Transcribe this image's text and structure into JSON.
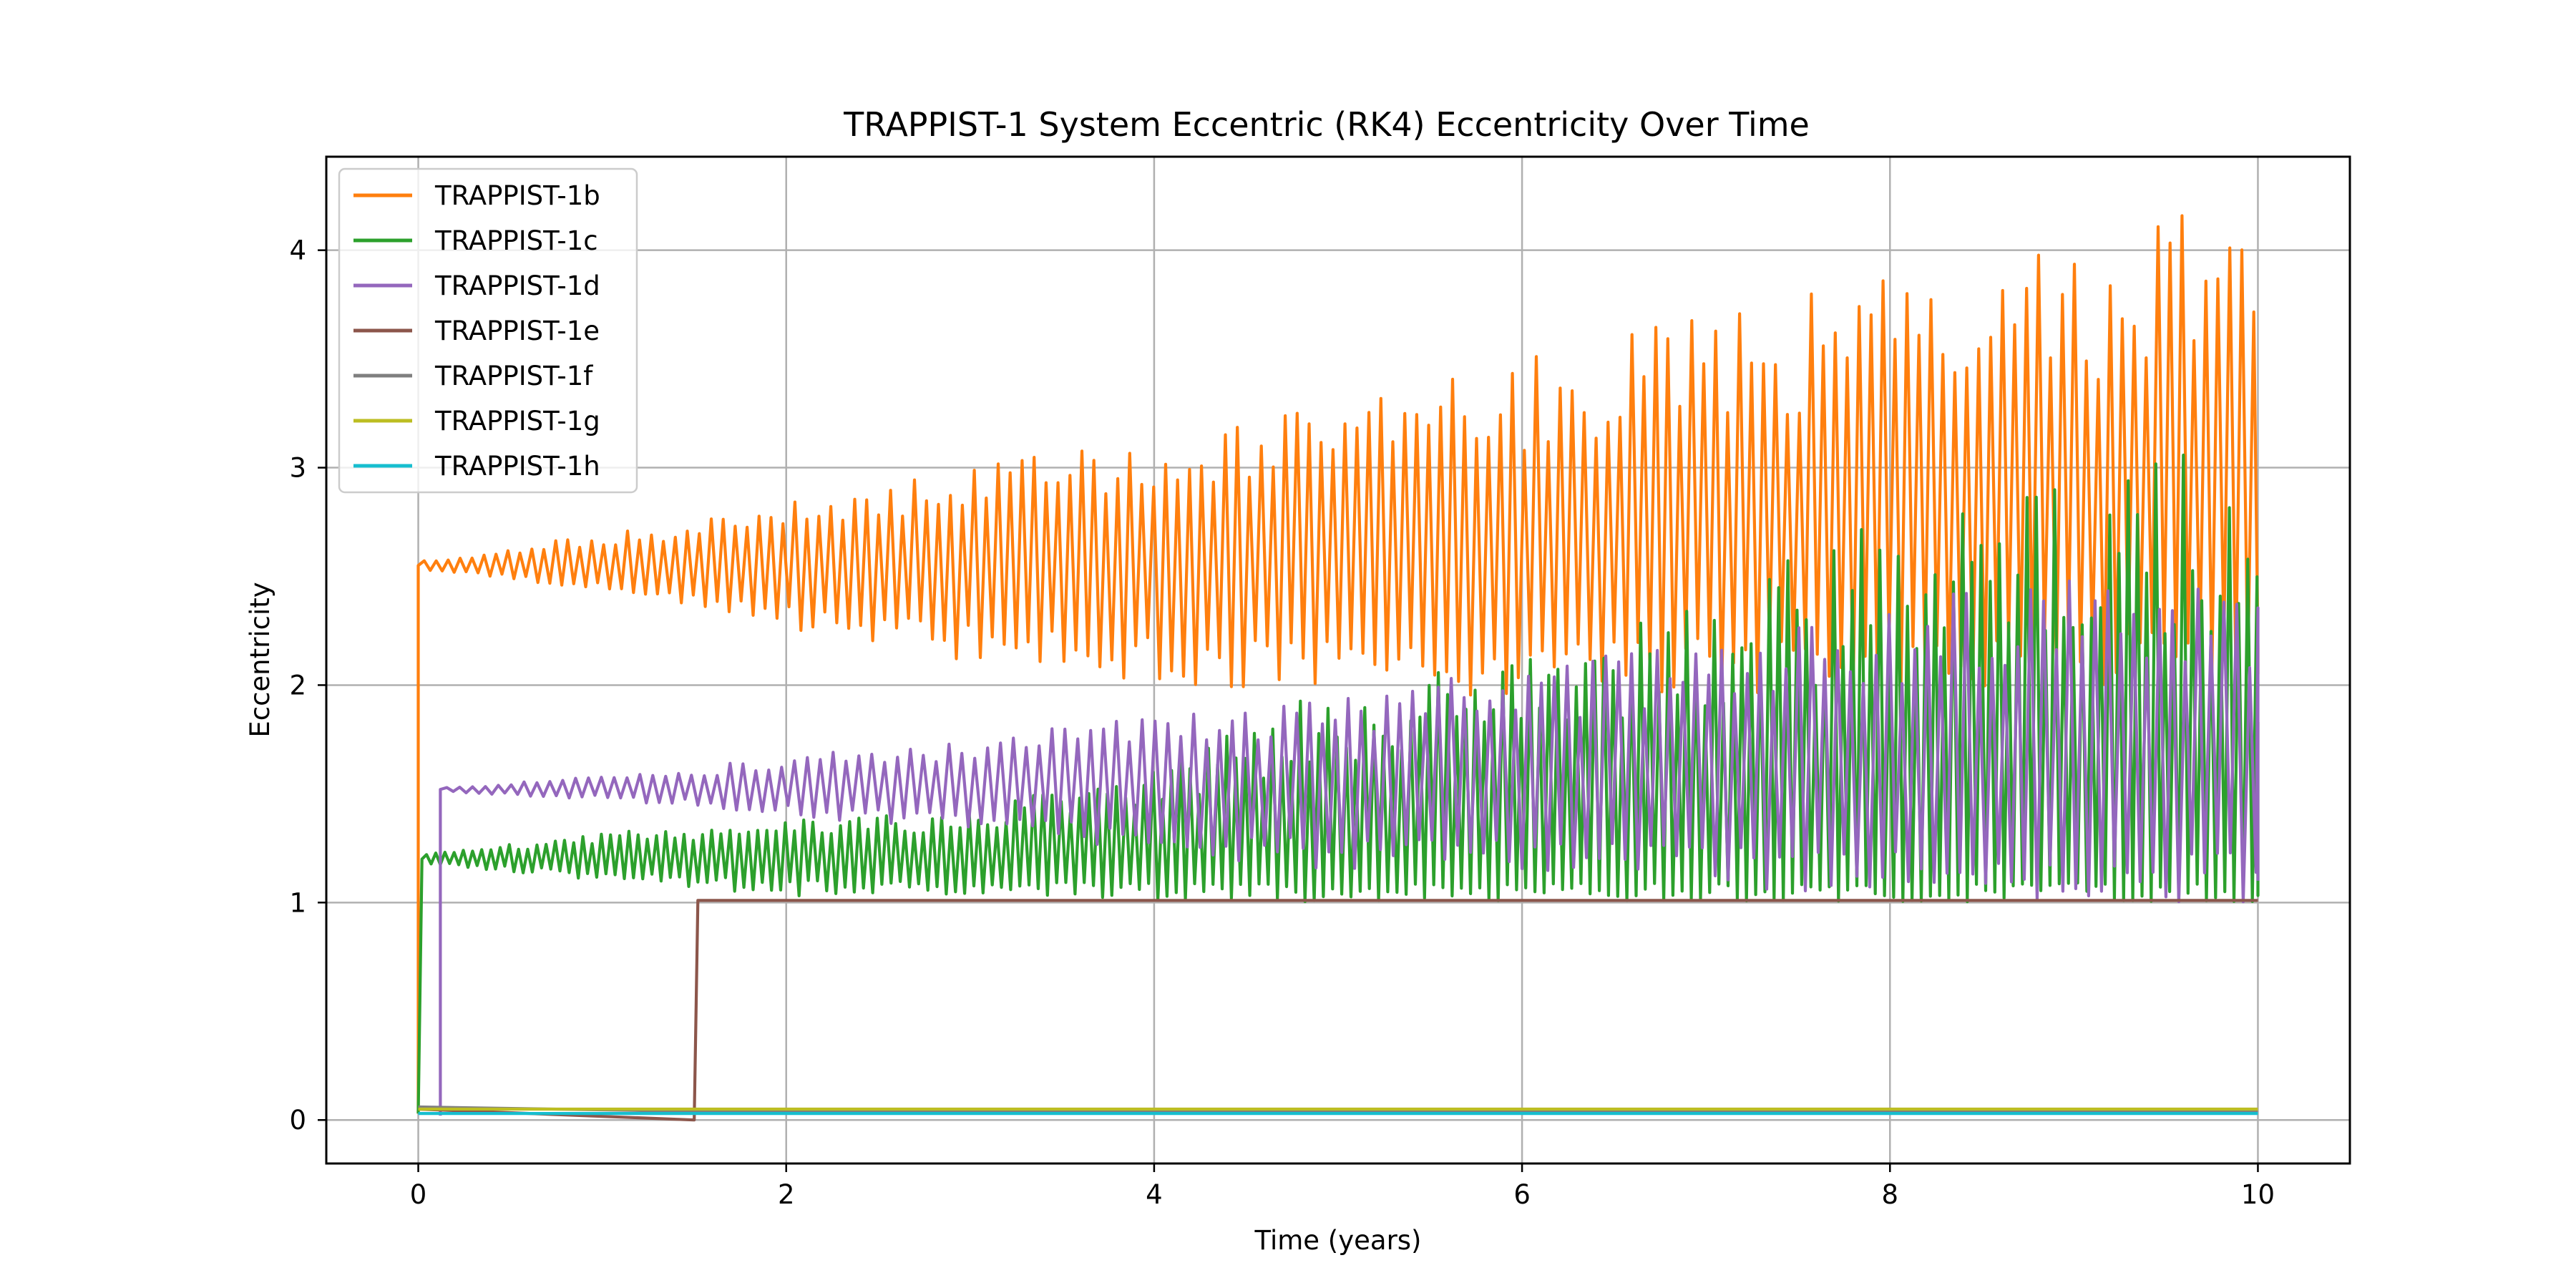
{
  "chart_data": {
    "type": "line",
    "title": "TRAPPIST-1 System Eccentric (RK4) Eccentricity Over Time",
    "xlabel": "Time (years)",
    "ylabel": "Eccentricity",
    "xlim": [
      -0.5,
      10.5
    ],
    "ylim": [
      -0.2,
      4.43
    ],
    "xticks": [
      0,
      2,
      4,
      6,
      8,
      10
    ],
    "yticks": [
      0,
      1,
      2,
      3,
      4
    ],
    "xtick_labels": [
      "0",
      "2",
      "4",
      "6",
      "8",
      "10"
    ],
    "ytick_labels": [
      "0",
      "1",
      "2",
      "3",
      "4"
    ],
    "grid": true,
    "legend_position": "upper-left",
    "series": [
      {
        "name": "TRAPPIST-1b",
        "color": "#ff7f0e",
        "start": {
          "x": 0,
          "y": 0.03
        },
        "jump_at": 0.0,
        "base": 2.55,
        "envelope": [
          [
            0.0,
            0.02,
            0.02
          ],
          [
            1.0,
            0.15,
            0.12
          ],
          [
            2.0,
            0.3,
            0.3
          ],
          [
            3.0,
            0.45,
            0.48
          ],
          [
            4.0,
            0.6,
            0.55
          ],
          [
            5.0,
            0.75,
            0.6
          ],
          [
            6.0,
            0.95,
            0.6
          ],
          [
            7.0,
            1.15,
            0.6
          ],
          [
            8.0,
            1.35,
            0.6
          ],
          [
            9.0,
            1.5,
            0.55
          ],
          [
            9.6,
            1.65,
            0.55
          ],
          [
            10.0,
            1.6,
            0.5
          ]
        ],
        "period": 0.065,
        "end": 2.05
      },
      {
        "name": "TRAPPIST-1c",
        "color": "#2ca02c",
        "start": {
          "x": 0,
          "y": 0.03
        },
        "jump_at": 0.02,
        "base": 1.2,
        "envelope": [
          [
            0.0,
            0.02,
            0.02
          ],
          [
            1.0,
            0.12,
            0.1
          ],
          [
            2.0,
            0.18,
            0.17
          ],
          [
            3.0,
            0.22,
            0.18
          ],
          [
            4.0,
            0.45,
            0.19
          ],
          [
            5.0,
            0.8,
            0.2
          ],
          [
            6.0,
            1.0,
            0.2
          ],
          [
            7.0,
            1.2,
            0.2
          ],
          [
            8.0,
            1.6,
            0.2
          ],
          [
            9.0,
            1.8,
            0.2
          ],
          [
            9.6,
            1.9,
            0.2
          ],
          [
            10.0,
            1.5,
            0.2
          ]
        ],
        "period": 0.05,
        "end": 1.83
      },
      {
        "name": "TRAPPIST-1d",
        "color": "#9467bd",
        "start": {
          "x": 0.12,
          "y": 0.02
        },
        "jump_at": 0.12,
        "base": 1.52,
        "envelope": [
          [
            0.12,
            0.01,
            0.01
          ],
          [
            1.0,
            0.06,
            0.05
          ],
          [
            2.0,
            0.15,
            0.12
          ],
          [
            3.0,
            0.25,
            0.2
          ],
          [
            4.0,
            0.35,
            0.3
          ],
          [
            5.0,
            0.45,
            0.38
          ],
          [
            6.0,
            0.55,
            0.42
          ],
          [
            7.0,
            0.7,
            0.46
          ],
          [
            8.0,
            0.85,
            0.5
          ],
          [
            9.0,
            1.0,
            0.52
          ],
          [
            10.0,
            1.0,
            0.52
          ]
        ],
        "period": 0.07,
        "end": 1.1
      },
      {
        "name": "TRAPPIST-1e",
        "color": "#8c564b",
        "points": [
          [
            0,
            0.05
          ],
          [
            1.5,
            0.0
          ],
          [
            1.52,
            1.01
          ],
          [
            10,
            1.01
          ]
        ]
      },
      {
        "name": "TRAPPIST-1f",
        "color": "#7f7f7f",
        "points": [
          [
            0,
            0.06
          ],
          [
            1.5,
            0.04
          ],
          [
            10,
            0.04
          ]
        ]
      },
      {
        "name": "TRAPPIST-1g",
        "color": "#bcbd22",
        "points": [
          [
            0,
            0.05
          ],
          [
            1.5,
            0.05
          ],
          [
            10,
            0.05
          ]
        ]
      },
      {
        "name": "TRAPPIST-1h",
        "color": "#17becf",
        "points": [
          [
            0,
            0.03
          ],
          [
            10,
            0.03
          ]
        ]
      }
    ]
  }
}
